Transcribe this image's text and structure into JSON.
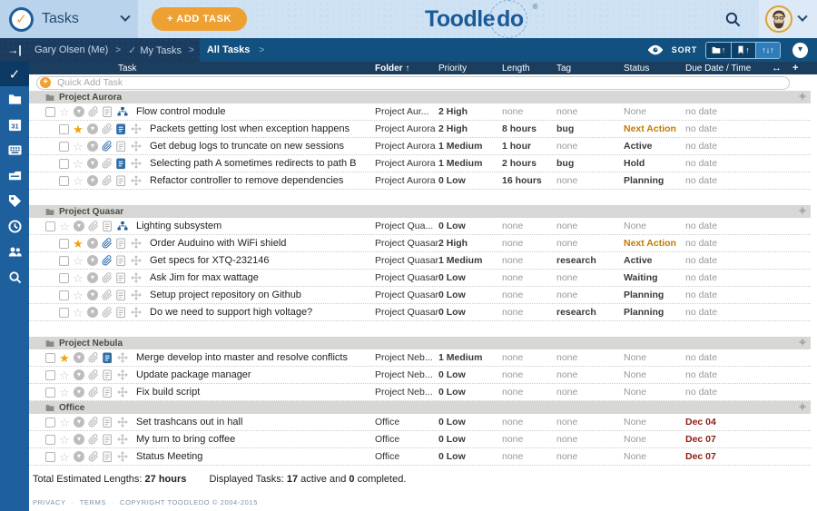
{
  "colors": {
    "accent_orange": "#efa032",
    "brand_blue": "#1b5a96",
    "sidebar_blue": "#1e5f9e",
    "status_next_action": "#c07c00",
    "due_red": "#8c1d12",
    "star_gold": "#f0a30a"
  },
  "header": {
    "app_selector_label": "Tasks",
    "add_task_label": "+ ADD TASK",
    "logo_part1": "Toodle",
    "logo_part2": "do",
    "logo_registered": "®"
  },
  "breadcrumb": {
    "items": [
      {
        "label": "Gary Olsen (Me)"
      },
      {
        "label": "My Tasks",
        "check": "✓"
      },
      {
        "label": "All Tasks"
      }
    ],
    "separator": ">",
    "sort_label": "SORT",
    "sort_arrow_up": "↑",
    "sort_arrows_mixed": "↑↓↑"
  },
  "table": {
    "columns": [
      "Task",
      "Folder",
      "Priority",
      "Length",
      "Tag",
      "Status",
      "Due Date / Time"
    ],
    "sorted_column": "Folder",
    "sort_indicator": "↑",
    "resize_icon": "↔",
    "add_column_icon": "+",
    "quick_add_placeholder": "Quick Add Task"
  },
  "sections": [
    {
      "name": "Project Aurora",
      "gap_after": true,
      "tasks": [
        {
          "title": "Flow control module",
          "folder": "Project Aur...",
          "priority": "2 High",
          "length": "none",
          "tag": "none",
          "status": "None",
          "due": "no date",
          "starred": false,
          "attachment": false,
          "note": false,
          "parent": true,
          "indent": false
        },
        {
          "title": "Packets getting lost when exception happens",
          "folder": "Project Aurora",
          "priority": "2 High",
          "length": "8 hours",
          "tag": "bug",
          "status": "Next Action",
          "due": "no date",
          "starred": true,
          "attachment": false,
          "note": true,
          "parent": false,
          "indent": true
        },
        {
          "title": "Get debug logs to truncate on new sessions",
          "folder": "Project Aurora",
          "priority": "1 Medium",
          "length": "1 hour",
          "tag": "none",
          "status": "Active",
          "due": "no date",
          "starred": false,
          "attachment": true,
          "note": false,
          "parent": false,
          "indent": true
        },
        {
          "title": "Selecting path A sometimes redirects to path B",
          "folder": "Project Aurora",
          "priority": "1 Medium",
          "length": "2 hours",
          "tag": "bug",
          "status": "Hold",
          "due": "no date",
          "starred": false,
          "attachment": false,
          "note": true,
          "parent": false,
          "indent": true
        },
        {
          "title": "Refactor controller to remove dependencies",
          "folder": "Project Aurora",
          "priority": "0 Low",
          "length": "16 hours",
          "tag": "none",
          "status": "Planning",
          "due": "no date",
          "starred": false,
          "attachment": false,
          "note": false,
          "parent": false,
          "indent": true
        }
      ]
    },
    {
      "name": "Project Quasar",
      "gap_after": true,
      "tasks": [
        {
          "title": "Lighting subsystem",
          "folder": "Project Qua...",
          "priority": "0 Low",
          "length": "none",
          "tag": "none",
          "status": "None",
          "due": "no date",
          "starred": false,
          "attachment": false,
          "note": false,
          "parent": true,
          "indent": false
        },
        {
          "title": "Order Auduino with WiFi shield",
          "folder": "Project Quasar",
          "priority": "2 High",
          "length": "none",
          "tag": "none",
          "status": "Next Action",
          "due": "no date",
          "starred": true,
          "attachment": true,
          "note": false,
          "parent": false,
          "indent": true
        },
        {
          "title": "Get specs for XTQ-232146",
          "folder": "Project Quasar",
          "priority": "1 Medium",
          "length": "none",
          "tag": "research",
          "status": "Active",
          "due": "no date",
          "starred": false,
          "attachment": true,
          "note": false,
          "parent": false,
          "indent": true
        },
        {
          "title": "Ask Jim for max wattage",
          "folder": "Project Quasar",
          "priority": "0 Low",
          "length": "none",
          "tag": "none",
          "status": "Waiting",
          "due": "no date",
          "starred": false,
          "attachment": false,
          "note": false,
          "parent": false,
          "indent": true
        },
        {
          "title": "Setup project repository on Github",
          "folder": "Project Quasar",
          "priority": "0 Low",
          "length": "none",
          "tag": "none",
          "status": "Planning",
          "due": "no date",
          "starred": false,
          "attachment": false,
          "note": false,
          "parent": false,
          "indent": true
        },
        {
          "title": "Do we need to support high voltage?",
          "folder": "Project Quasar",
          "priority": "0 Low",
          "length": "none",
          "tag": "research",
          "status": "Planning",
          "due": "no date",
          "starred": false,
          "attachment": false,
          "note": false,
          "parent": false,
          "indent": true
        }
      ]
    },
    {
      "name": "Project Nebula",
      "gap_after": false,
      "tasks": [
        {
          "title": "Merge develop into master and resolve conflicts",
          "folder": "Project Neb...",
          "priority": "1 Medium",
          "length": "none",
          "tag": "none",
          "status": "None",
          "due": "no date",
          "starred": true,
          "attachment": false,
          "note": true,
          "parent": false,
          "indent": false
        },
        {
          "title": "Update package manager",
          "folder": "Project Neb...",
          "priority": "0 Low",
          "length": "none",
          "tag": "none",
          "status": "None",
          "due": "no date",
          "starred": false,
          "attachment": false,
          "note": false,
          "parent": false,
          "indent": false
        },
        {
          "title": "Fix build script",
          "folder": "Project Neb...",
          "priority": "0 Low",
          "length": "none",
          "tag": "none",
          "status": "None",
          "due": "no date",
          "starred": false,
          "attachment": false,
          "note": false,
          "parent": false,
          "indent": false
        }
      ]
    },
    {
      "name": "Office",
      "gap_after": false,
      "tasks": [
        {
          "title": "Set trashcans out in hall",
          "folder": "Office",
          "priority": "0 Low",
          "length": "none",
          "tag": "none",
          "status": "None",
          "due": "Dec 04",
          "starred": false,
          "attachment": false,
          "note": false,
          "parent": false,
          "indent": false
        },
        {
          "title": "My turn to bring coffee",
          "folder": "Office",
          "priority": "0 Low",
          "length": "none",
          "tag": "none",
          "status": "None",
          "due": "Dec 07",
          "starred": false,
          "attachment": false,
          "note": false,
          "parent": false,
          "indent": false
        },
        {
          "title": "Status Meeting",
          "folder": "Office",
          "priority": "0 Low",
          "length": "none",
          "tag": "none",
          "status": "None",
          "due": "Dec 07",
          "starred": false,
          "attachment": false,
          "note": false,
          "parent": false,
          "indent": false
        }
      ]
    }
  ],
  "footer": {
    "total_label": "Total Estimated Lengths:",
    "total_value": "27 hours",
    "displayed_label": "Displayed Tasks:",
    "active_count": "17",
    "active_text": "active and",
    "completed_count": "0",
    "completed_text": "completed."
  },
  "legal": {
    "items": [
      "PRIVACY",
      "TERMS",
      "COPYRIGHT TOODLEDO © 2004-2015"
    ],
    "separator": "·"
  }
}
